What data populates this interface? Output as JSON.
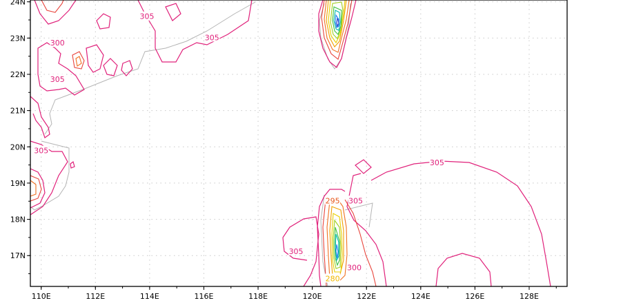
{
  "map": {
    "x_ticks": [
      "110E",
      "112E",
      "114E",
      "116E",
      "118E",
      "120E",
      "122E",
      "124E",
      "126E",
      "128E"
    ],
    "y_ticks": [
      "24N",
      "23N",
      "22N",
      "21N",
      "20N",
      "19N",
      "18N",
      "17N"
    ],
    "contour_labels": [
      {
        "text": "305",
        "lon": 113.9,
        "lat": 23.58,
        "color": "#e0207a"
      },
      {
        "text": "305",
        "lon": 116.3,
        "lat": 23.0,
        "color": "#e0207a"
      },
      {
        "text": "300",
        "lon": 110.6,
        "lat": 22.85,
        "color": "#e0207a"
      },
      {
        "text": "305",
        "lon": 110.6,
        "lat": 21.85,
        "color": "#e0207a"
      },
      {
        "text": "305",
        "lon": 110.0,
        "lat": 19.88,
        "color": "#e0207a"
      },
      {
        "text": "305",
        "lon": 124.6,
        "lat": 19.55,
        "color": "#e0207a"
      },
      {
        "text": "295",
        "lon": 120.75,
        "lat": 18.5,
        "color": "#e8581c"
      },
      {
        "text": "305",
        "lon": 121.6,
        "lat": 18.5,
        "color": "#e0207a"
      },
      {
        "text": "305",
        "lon": 119.4,
        "lat": 17.1,
        "color": "#e0207a"
      },
      {
        "text": "300",
        "lon": 121.55,
        "lat": 16.65,
        "color": "#e0207a"
      },
      {
        "text": "280",
        "lon": 120.75,
        "lat": 16.35,
        "color": "#f0b800"
      }
    ],
    "colors": {
      "coastline": "#b4b4b4",
      "c305": "#e0207a",
      "c300": "#e8433a",
      "c295": "#f07020",
      "c290": "#f0a000",
      "c285": "#e8d000",
      "c280": "#a0d020",
      "c275": "#40c040",
      "c270": "#00b8b0",
      "c265": "#2080f0",
      "c260": "#2040d0"
    }
  }
}
